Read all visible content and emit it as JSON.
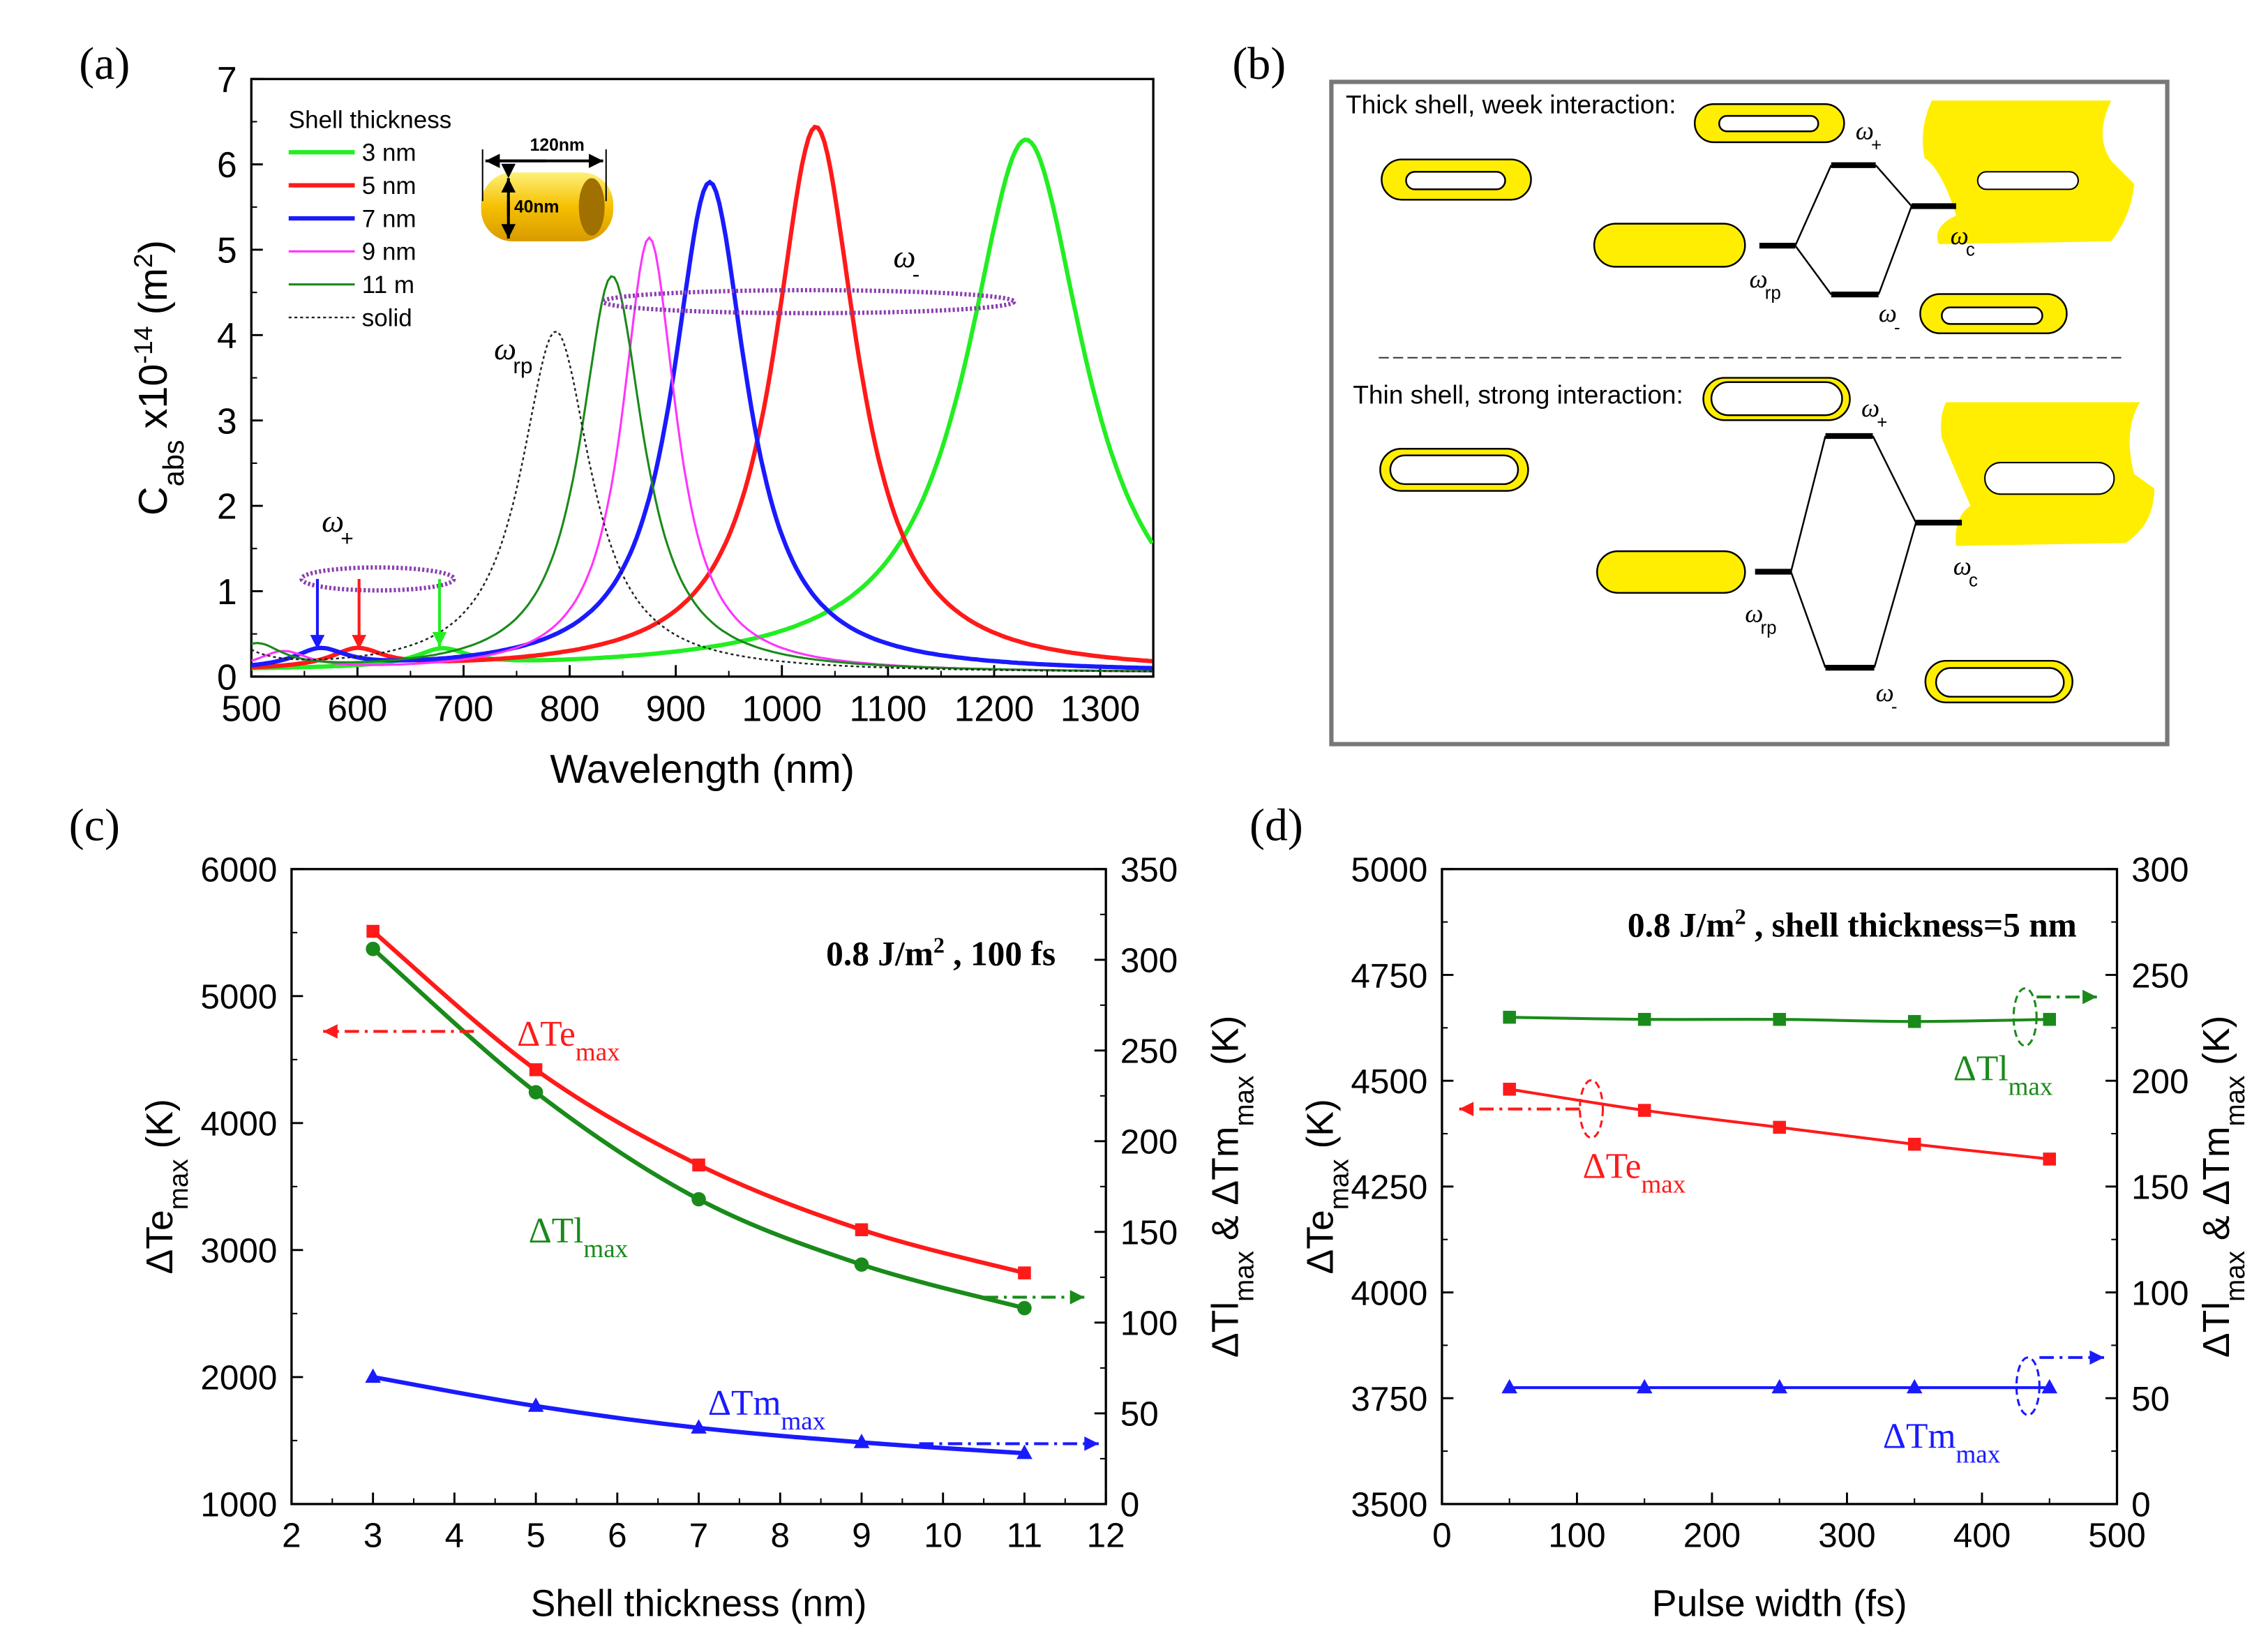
{
  "panel_labels": {
    "a": "(a)",
    "b": "(b)",
    "c": "(c)",
    "d": "(d)"
  },
  "chart_data": [
    {
      "id": "a",
      "type": "line",
      "xlabel": "Wavelength (nm)",
      "ylabel_parts": [
        [
          "C",
          ""
        ],
        [
          "abs",
          "sub"
        ],
        [
          " x10",
          ""
        ],
        [
          "-14",
          "sup"
        ],
        [
          " (m",
          ""
        ],
        [
          "2",
          "sup"
        ],
        [
          ")",
          ""
        ]
      ],
      "xlim": [
        500,
        1350
      ],
      "ylim": [
        0,
        7
      ],
      "xticks": [
        500,
        600,
        700,
        800,
        900,
        1000,
        1100,
        1200,
        1300
      ],
      "yticks": [
        0,
        1,
        2,
        3,
        4,
        5,
        6,
        7
      ],
      "legend_title": "Shell thickness",
      "legend_position": "top-left",
      "series": [
        {
          "name": "3 nm",
          "color": "#22ee22",
          "width": 3,
          "dash": "",
          "peak_nm": 1230,
          "peak_value": 6.25,
          "fwhm_nm": 135,
          "plus_mode_nm": 680,
          "plus_mode_value": 0.2
        },
        {
          "name": "5 nm",
          "color": "#ff1a1a",
          "width": 3,
          "dash": "",
          "peak_nm": 1032,
          "peak_value": 6.4,
          "fwhm_nm": 95,
          "plus_mode_nm": 600,
          "plus_mode_value": 0.22
        },
        {
          "name": "7 nm",
          "color": "#1a1aff",
          "width": 3,
          "dash": "",
          "peak_nm": 932,
          "peak_value": 5.75,
          "fwhm_nm": 85,
          "plus_mode_nm": 565,
          "plus_mode_value": 0.22
        },
        {
          "name": "9 nm",
          "color": "#ff33ff",
          "width": 1.5,
          "dash": "",
          "peak_nm": 875,
          "peak_value": 5.1,
          "fwhm_nm": 62,
          "plus_mode_nm": 530,
          "plus_mode_value": 0.22
        },
        {
          "name": "11 m",
          "color": "#1a8a1a",
          "width": 1.5,
          "dash": "",
          "peak_nm": 840,
          "peak_value": 4.65,
          "fwhm_nm": 72,
          "plus_mode_nm": 505,
          "plus_mode_value": 0.3
        },
        {
          "name": "solid",
          "color": "#222222",
          "width": 1.2,
          "dash": "2,2",
          "peak_nm": 787,
          "peak_value": 4.0,
          "fwhm_nm": 80,
          "plus_mode_nm": 470,
          "plus_mode_value": 0.4
        }
      ],
      "annotations": {
        "omega_plus": {
          "symbol": "ω",
          "sub": "+"
        },
        "omega_rp": {
          "symbol": "ω",
          "sub": "rp"
        },
        "omega_minus": {
          "symbol": "ω",
          "sub": "-"
        }
      },
      "inset": {
        "length_label": "120nm",
        "diameter_label": "40nm"
      },
      "marker_colors": {
        "ellipse": "#8a3fb0"
      }
    },
    {
      "id": "c",
      "type": "line",
      "xlabel": "Shell thickness (nm)",
      "ylabel_parts": [
        [
          "ΔTe",
          ""
        ],
        [
          "max",
          "sub"
        ],
        [
          " (K)",
          ""
        ]
      ],
      "ylabel2_parts": [
        [
          "ΔTl",
          ""
        ],
        [
          "max",
          "sub"
        ],
        [
          " & ΔTm",
          ""
        ],
        [
          "max",
          "sub"
        ],
        [
          " (K)",
          ""
        ]
      ],
      "xlim": [
        2,
        12
      ],
      "ylim": [
        1000,
        6000
      ],
      "y2lim": [
        0,
        350
      ],
      "xticks": [
        2,
        3,
        4,
        5,
        6,
        7,
        8,
        9,
        10,
        11,
        12
      ],
      "yticks": [
        1000,
        2000,
        3000,
        4000,
        5000,
        6000
      ],
      "y2ticks": [
        0,
        50,
        100,
        150,
        200,
        250,
        300,
        350
      ],
      "condition_parts": [
        [
          "0.8 J/m",
          ""
        ],
        [
          "2",
          "sup"
        ],
        [
          " , 100 fs",
          ""
        ]
      ],
      "x": [
        3,
        5,
        7,
        9,
        11
      ],
      "series": [
        {
          "name": "ΔTe",
          "sub": "max",
          "axis": "left",
          "marker": "square",
          "color": "#ff1a1a",
          "values": [
            5510,
            4420,
            3670,
            3160,
            2820
          ]
        },
        {
          "name": "ΔTl",
          "sub": "max",
          "axis": "right",
          "marker": "circle",
          "color": "#1a8a1a",
          "values": [
            306,
            227,
            168,
            132,
            108
          ]
        },
        {
          "name": "ΔTm",
          "sub": "max",
          "axis": "right",
          "marker": "triangle",
          "color": "#1a1aff",
          "values": [
            70,
            54,
            42,
            34,
            28
          ]
        }
      ]
    },
    {
      "id": "d",
      "type": "line",
      "xlabel": "Pulse width (fs)",
      "ylabel_parts": [
        [
          "ΔTe",
          ""
        ],
        [
          "max",
          "sub"
        ],
        [
          " (K)",
          ""
        ]
      ],
      "ylabel2_parts": [
        [
          "ΔTl",
          ""
        ],
        [
          "max",
          "sub"
        ],
        [
          " & ΔTm",
          ""
        ],
        [
          "max",
          "sub"
        ],
        [
          " (K)",
          ""
        ]
      ],
      "xlim": [
        0,
        500
      ],
      "ylim": [
        3500,
        5000
      ],
      "y2lim": [
        0,
        300
      ],
      "xticks": [
        0,
        100,
        200,
        300,
        400,
        500
      ],
      "yticks": [
        3500,
        3750,
        4000,
        4250,
        4500,
        4750,
        5000
      ],
      "y2ticks": [
        0,
        50,
        100,
        150,
        200,
        250,
        300
      ],
      "condition_parts": [
        [
          "0.8 J/m",
          ""
        ],
        [
          "2",
          "sup"
        ],
        [
          " , shell thickness=5 nm",
          ""
        ]
      ],
      "x": [
        50,
        150,
        250,
        350,
        450
      ],
      "series": [
        {
          "name": "ΔTe",
          "sub": "max",
          "axis": "left",
          "marker": "square",
          "color": "#ff1a1a",
          "values": [
            4480,
            4430,
            4390,
            4350,
            4315
          ]
        },
        {
          "name": "ΔTl",
          "sub": "max",
          "axis": "right",
          "marker": "square",
          "color": "#1a8a1a",
          "values": [
            230,
            229,
            229,
            228,
            229
          ]
        },
        {
          "name": "ΔTm",
          "sub": "max",
          "axis": "right",
          "marker": "triangle",
          "color": "#1a1aff",
          "values": [
            55,
            55,
            55,
            55,
            55
          ]
        }
      ]
    }
  ],
  "diagram_b": {
    "thick_title": "Thick shell, week interaction:",
    "thin_title": "Thin shell, strong interaction:",
    "omega": "ω",
    "sub_plus": "+",
    "sub_minus": "-",
    "sub_rp": "rp",
    "sub_c": "c",
    "gold_color": "#ffee00"
  }
}
